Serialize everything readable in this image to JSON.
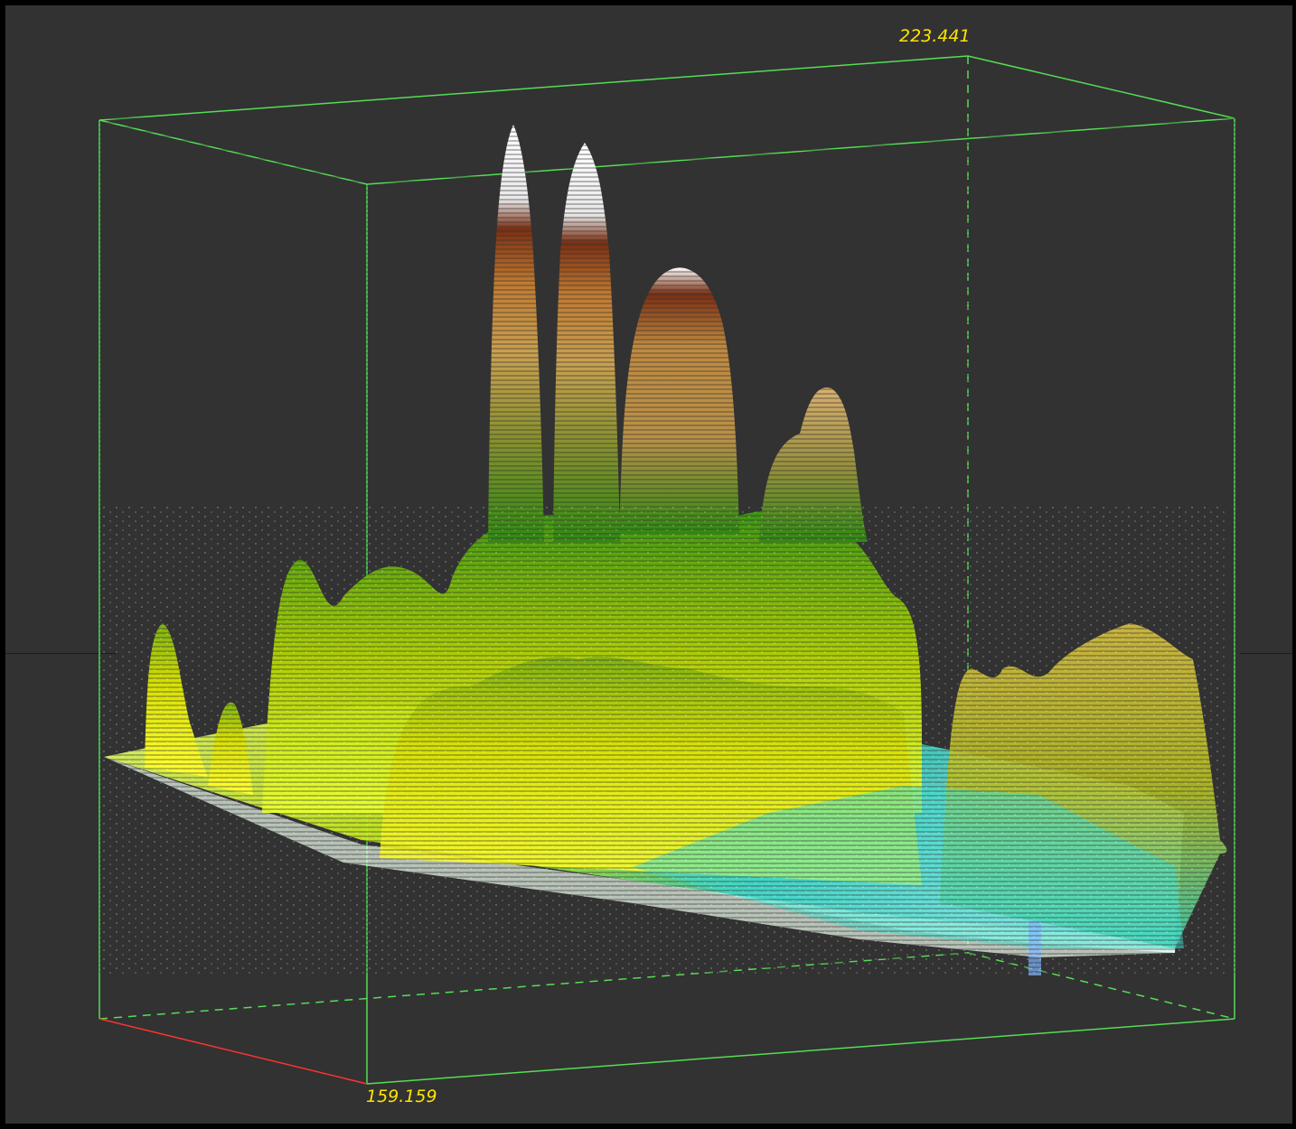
{
  "viewer": {
    "background_color": "#323232",
    "frame_color": "#000000",
    "bbox_color": "#55dd55",
    "axis_color": "#ff3333",
    "label_color": "#ffe400"
  },
  "bounding_box": {
    "top_value_label": "223.441",
    "bottom_value_label": "159.159"
  },
  "point_cloud": {
    "colormap": [
      "#7fd6ff",
      "#3fe0d0",
      "#c8f000",
      "#ffff20",
      "#8fc800",
      "#3a9a10",
      "#c9a050",
      "#c08030",
      "#8a3a18",
      "#ffffff"
    ]
  }
}
